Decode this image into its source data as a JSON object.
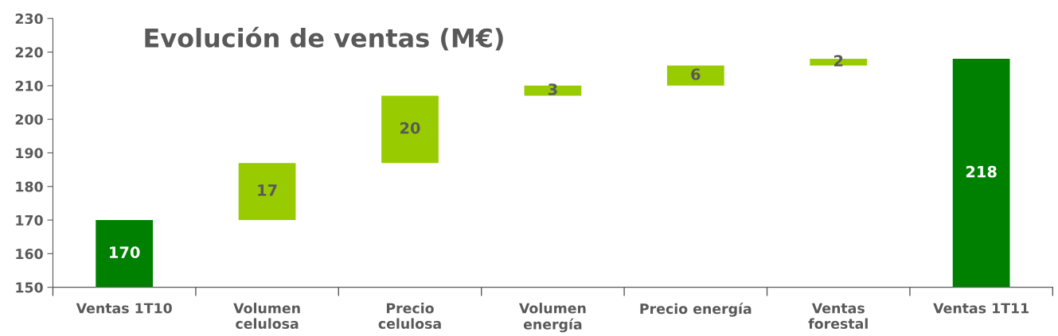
{
  "chart_data": {
    "type": "bar",
    "title": "Evolución de ventas (M€)",
    "categories": [
      "Ventas 1T10",
      "Volumen\ncelulosa",
      "Precio\ncelulosa",
      "Volumen\nenergía",
      "Precio energía",
      "Ventas\nforestal",
      "Ventas 1T11"
    ],
    "values": [
      170,
      17,
      20,
      3,
      6,
      2,
      218
    ],
    "base": [
      0,
      170,
      187,
      207,
      210,
      216,
      0
    ],
    "colors": [
      "#008000",
      "#99cc00",
      "#99cc00",
      "#99cc00",
      "#99cc00",
      "#99cc00",
      "#008000"
    ],
    "data_labels": true,
    "ylim": [
      150,
      230
    ],
    "yticks": [
      150,
      160,
      170,
      180,
      190,
      200,
      210,
      220,
      230
    ],
    "grid": false,
    "legend": false
  }
}
